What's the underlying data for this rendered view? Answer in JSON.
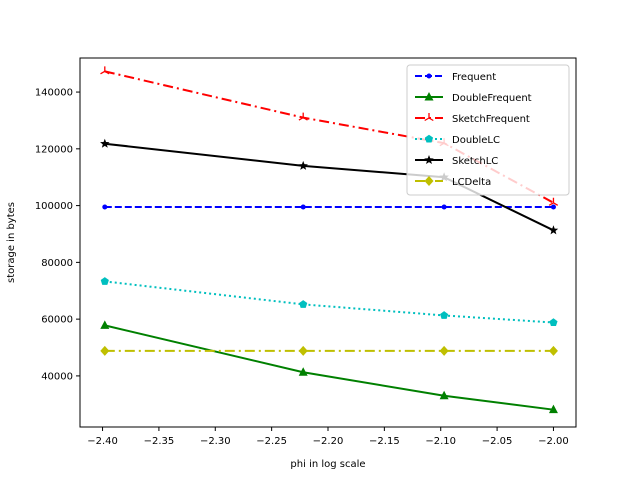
{
  "chart_data": {
    "type": "line",
    "title": "",
    "xlabel": "phi in log scale",
    "ylabel": "storage in bytes",
    "xlim": [
      -2.42,
      -1.98
    ],
    "ylim": [
      22000,
      152000
    ],
    "xticks": [
      -2.4,
      -2.35,
      -2.3,
      -2.25,
      -2.2,
      -2.15,
      -2.1,
      -2.05,
      -2.0
    ],
    "xtick_labels": [
      "−2.40",
      "−2.35",
      "−2.30",
      "−2.25",
      "−2.20",
      "−2.15",
      "−2.10",
      "−2.05",
      "−2.00"
    ],
    "yticks": [
      40000,
      60000,
      80000,
      100000,
      120000,
      140000
    ],
    "ytick_labels": [
      "40000",
      "60000",
      "80000",
      "100000",
      "120000",
      "140000"
    ],
    "grid": false,
    "legend_position": "top-right",
    "x": [
      -2.398,
      -2.222,
      -2.097,
      -2.0
    ],
    "series": [
      {
        "name": "Frequent",
        "values": [
          99500,
          99500,
          99500,
          99500
        ],
        "color": "#0000ff",
        "dash": "dashed",
        "marker": "point"
      },
      {
        "name": "DoubleFrequent",
        "values": [
          57800,
          41300,
          33000,
          28100
        ],
        "color": "#008000",
        "dash": "solid",
        "marker": "triangle"
      },
      {
        "name": "SketchFrequent",
        "values": [
          147300,
          131000,
          122000,
          101000
        ],
        "color": "#ff0000",
        "dash": "dashdot",
        "marker": "tri-up"
      },
      {
        "name": "DoubleLC",
        "values": [
          73300,
          65200,
          61300,
          58800
        ],
        "color": "#00bfbf",
        "dash": "dotted",
        "marker": "pentagon"
      },
      {
        "name": "SketchLC",
        "values": [
          121800,
          114000,
          110000,
          91300
        ],
        "color": "#000000",
        "dash": "solid",
        "marker": "star"
      },
      {
        "name": "LCDelta",
        "values": [
          48800,
          48800,
          48800,
          48800
        ],
        "color": "#bfbf00",
        "dash": "dashdot",
        "marker": "diamond"
      }
    ]
  }
}
